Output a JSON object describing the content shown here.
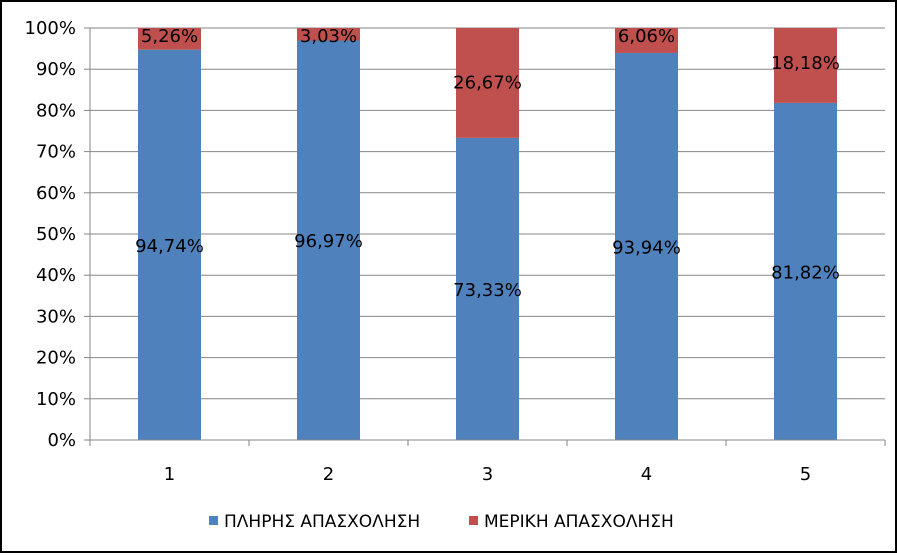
{
  "chart_data": {
    "type": "bar",
    "stacked": true,
    "percent_stacked": true,
    "categories": [
      "1",
      "2",
      "3",
      "4",
      "5"
    ],
    "series": [
      {
        "name": "ΠΛΗΡΗΣ ΑΠΑΣΧΟΛΗΣΗ",
        "color": "#4F81BD",
        "values": [
          94.74,
          96.97,
          73.33,
          93.94,
          81.82
        ],
        "labels": [
          "94,74%",
          "96,97%",
          "73,33%",
          "93,94%",
          "81,82%"
        ]
      },
      {
        "name": "ΜΕΡΙΚΗ ΑΠΑΣΧΟΛΗΣΗ",
        "color": "#C0504D",
        "values": [
          5.26,
          3.03,
          26.67,
          6.06,
          18.18
        ],
        "labels": [
          "5,26%",
          "3,03%",
          "26,67%",
          "6,06%",
          "18,18%"
        ]
      }
    ],
    "yticks": [
      "0%",
      "10%",
      "20%",
      "30%",
      "40%",
      "50%",
      "60%",
      "70%",
      "80%",
      "90%",
      "100%"
    ],
    "ylim": [
      0,
      100
    ],
    "grid": true,
    "legend_position": "bottom",
    "title": "",
    "xlabel": "",
    "ylabel": ""
  }
}
